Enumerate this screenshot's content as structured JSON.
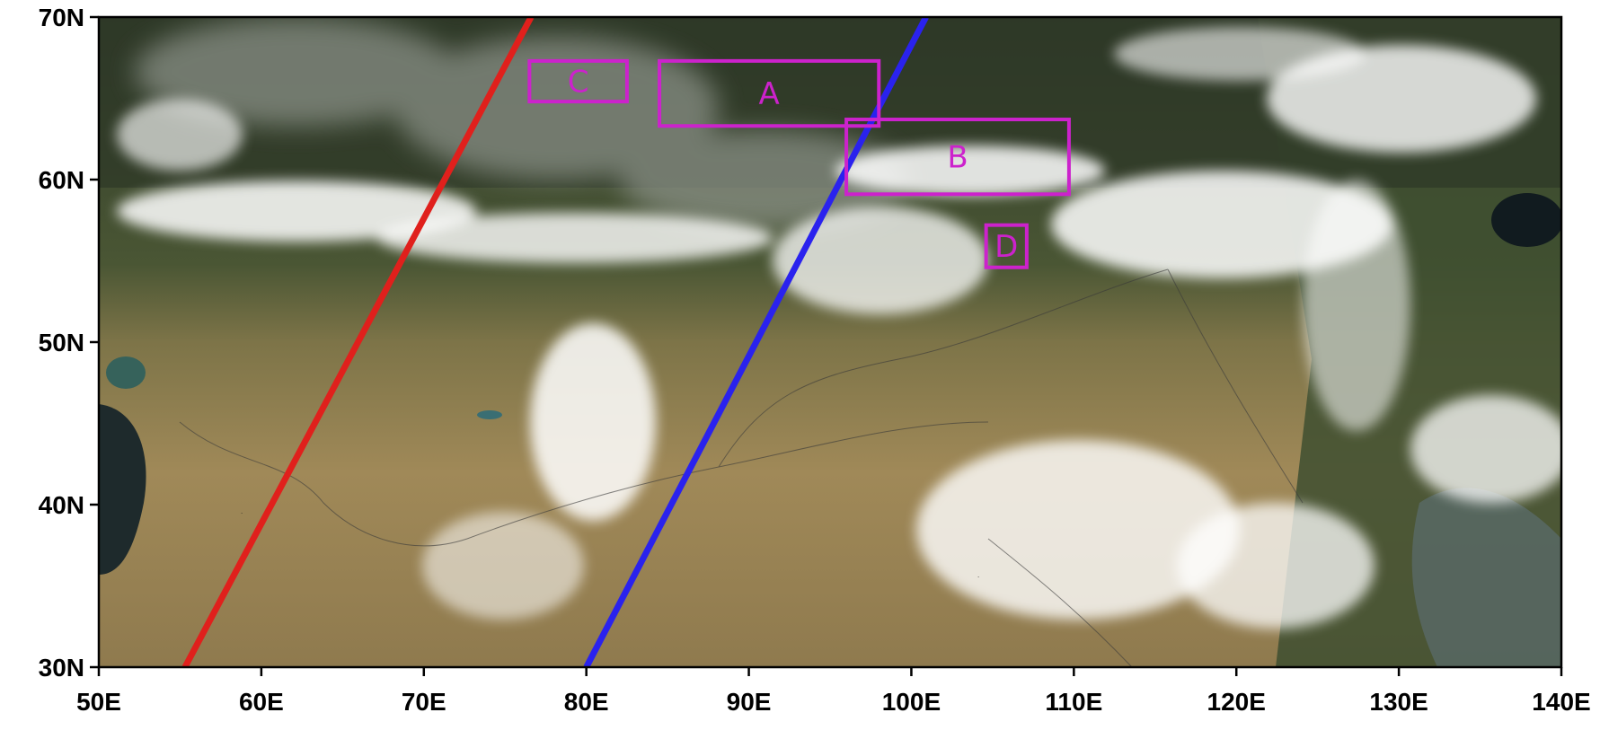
{
  "map": {
    "lon_range": [
      50,
      140
    ],
    "lat_range": [
      30,
      70
    ],
    "x_ticks": [
      {
        "value": 50,
        "label": "50E"
      },
      {
        "value": 60,
        "label": "60E"
      },
      {
        "value": 70,
        "label": "70E"
      },
      {
        "value": 80,
        "label": "80E"
      },
      {
        "value": 90,
        "label": "90E"
      },
      {
        "value": 100,
        "label": "100E"
      },
      {
        "value": 110,
        "label": "110E"
      },
      {
        "value": 120,
        "label": "120E"
      },
      {
        "value": 130,
        "label": "130E"
      },
      {
        "value": 140,
        "label": "140E"
      }
    ],
    "y_ticks": [
      {
        "value": 30,
        "label": "30N"
      },
      {
        "value": 40,
        "label": "40N"
      },
      {
        "value": 50,
        "label": "50N"
      },
      {
        "value": 60,
        "label": "60N"
      },
      {
        "value": 70,
        "label": "70N"
      }
    ],
    "tracks": [
      {
        "color": "#e0201c",
        "from": [
          55.3,
          30
        ],
        "to": [
          76.6,
          70
        ]
      },
      {
        "color": "#2a22ee",
        "from": [
          80.0,
          30
        ],
        "to": [
          100.9,
          70
        ]
      }
    ],
    "regions": [
      {
        "label": "A",
        "lon": [
          84.5,
          98.0
        ],
        "lat": [
          63.3,
          67.3
        ]
      },
      {
        "label": "B",
        "lon": [
          96.0,
          109.7
        ],
        "lat": [
          59.1,
          63.7
        ]
      },
      {
        "label": "C",
        "lon": [
          76.5,
          82.5
        ],
        "lat": [
          64.8,
          67.3
        ]
      },
      {
        "label": "D",
        "lon": [
          104.6,
          107.1
        ],
        "lat": [
          54.6,
          57.2
        ]
      }
    ],
    "colors": {
      "region_box": "#cc22cc",
      "axis": "#000000",
      "land_arid": "#9c8557",
      "land_forest": "#3b4a2c",
      "cloud": "#ffffff",
      "smoke": "#8f958c",
      "water": "#1e2a2c"
    }
  }
}
